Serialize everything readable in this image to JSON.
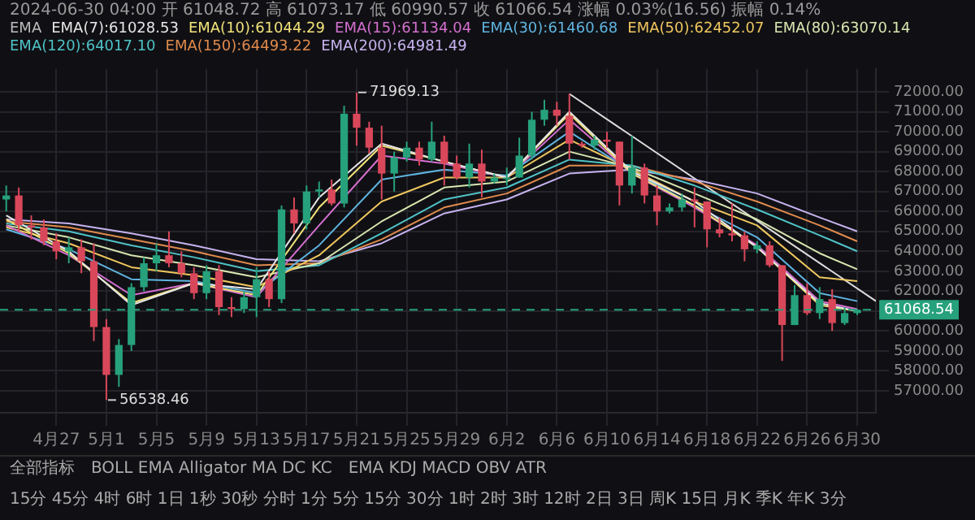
{
  "chart_data": {
    "type": "candlestick",
    "title": "2024-06-30 04:00 开 61048.72 高 61073.17 低 60990.57 收 61066.54 涨幅 0.03%(16.56) 振幅 0.14%",
    "legend_title": "EMA",
    "legend": "top",
    "grid": true,
    "marker": "none",
    "x": [
      "2024-04-23",
      "2024-04-24",
      "2024-04-25",
      "2024-04-26",
      "2024-04-27",
      "2024-04-28",
      "2024-04-29",
      "2024-04-30",
      "2024-05-01",
      "2024-05-02",
      "2024-05-03",
      "2024-05-04",
      "2024-05-05",
      "2024-05-06",
      "2024-05-07",
      "2024-05-08",
      "2024-05-09",
      "2024-05-10",
      "2024-05-11",
      "2024-05-12",
      "2024-05-13",
      "2024-05-14",
      "2024-05-15",
      "2024-05-16",
      "2024-05-17",
      "2024-05-18",
      "2024-05-19",
      "2024-05-20",
      "2024-05-21",
      "2024-05-22",
      "2024-05-23",
      "2024-05-24",
      "2024-05-25",
      "2024-05-26",
      "2024-05-27",
      "2024-05-28",
      "2024-05-29",
      "2024-05-30",
      "2024-05-31",
      "2024-06-01",
      "2024-06-02",
      "2024-06-03",
      "2024-06-04",
      "2024-06-05",
      "2024-06-06",
      "2024-06-07",
      "2024-06-08",
      "2024-06-09",
      "2024-06-10",
      "2024-06-11",
      "2024-06-12",
      "2024-06-13",
      "2024-06-14",
      "2024-06-15",
      "2024-06-16",
      "2024-06-17",
      "2024-06-18",
      "2024-06-19",
      "2024-06-20",
      "2024-06-21",
      "2024-06-22",
      "2024-06-23",
      "2024-06-24",
      "2024-06-25",
      "2024-06-26",
      "2024-06-27",
      "2024-06-28",
      "2024-06-29",
      "2024-06-30"
    ],
    "ohlc": [
      [
        66600,
        67300,
        66000,
        66800
      ],
      [
        66800,
        67200,
        65000,
        65300
      ],
      [
        65300,
        65800,
        64600,
        65200
      ],
      [
        65200,
        65600,
        64300,
        64500
      ],
      [
        64500,
        64900,
        63600,
        64000
      ],
      [
        64000,
        64700,
        63400,
        64200
      ],
      [
        64200,
        64600,
        62900,
        63500
      ],
      [
        63500,
        64400,
        59500,
        60200
      ],
      [
        60200,
        60600,
        56538.46,
        57800
      ],
      [
        57800,
        59600,
        57200,
        59300
      ],
      [
        59300,
        62400,
        59000,
        62200
      ],
      [
        62200,
        63700,
        62000,
        63400
      ],
      [
        63400,
        64400,
        63000,
        63800
      ],
      [
        63800,
        65000,
        63200,
        63400
      ],
      [
        63400,
        64000,
        62700,
        62900
      ],
      [
        62900,
        63200,
        61600,
        61900
      ],
      [
        61900,
        63300,
        61600,
        63000
      ],
      [
        63000,
        63300,
        60800,
        61200
      ],
      [
        61200,
        61700,
        60700,
        61100
      ],
      [
        61100,
        62000,
        60900,
        61700
      ],
      [
        61700,
        63200,
        60700,
        62600
      ],
      [
        62600,
        63000,
        61200,
        61600
      ],
      [
        61600,
        66300,
        61400,
        66100
      ],
      [
        66100,
        66700,
        64900,
        65400
      ],
      [
        65400,
        67300,
        65100,
        67000
      ],
      [
        67000,
        67500,
        66700,
        67100
      ],
      [
        67100,
        67600,
        66300,
        66400
      ],
      [
        66400,
        71300,
        66200,
        70900
      ],
      [
        70900,
        71969.13,
        69300,
        70200
      ],
      [
        70200,
        70500,
        68900,
        69200
      ],
      [
        69200,
        70300,
        66600,
        67900
      ],
      [
        67900,
        69000,
        67000,
        68700
      ],
      [
        68700,
        69500,
        68500,
        69200
      ],
      [
        69200,
        69500,
        68300,
        68600
      ],
      [
        68600,
        70500,
        68500,
        69500
      ],
      [
        69500,
        69800,
        67300,
        68400
      ],
      [
        68400,
        68800,
        67600,
        67700
      ],
      [
        67700,
        69400,
        67200,
        68400
      ],
      [
        68400,
        69100,
        66700,
        67500
      ],
      [
        67500,
        67900,
        67400,
        67700
      ],
      [
        67700,
        68200,
        67300,
        67700
      ],
      [
        67700,
        69700,
        67700,
        68800
      ],
      [
        68800,
        71000,
        68600,
        70600
      ],
      [
        70600,
        71600,
        70300,
        71100
      ],
      [
        71100,
        71500,
        70300,
        70800
      ],
      [
        70800,
        71900,
        68600,
        69400
      ],
      [
        69400,
        69500,
        69200,
        69300
      ],
      [
        69300,
        69800,
        69100,
        69600
      ],
      [
        69600,
        70000,
        69200,
        69500
      ],
      [
        69500,
        69500,
        66300,
        67300
      ],
      [
        67300,
        69800,
        66900,
        68200
      ],
      [
        68200,
        68400,
        66400,
        66800
      ],
      [
        66800,
        67300,
        65300,
        66000
      ],
      [
        66000,
        66400,
        65900,
        66200
      ],
      [
        66200,
        66900,
        66000,
        66600
      ],
      [
        66600,
        67200,
        65200,
        66500
      ],
      [
        66500,
        66500,
        64200,
        65100
      ],
      [
        65100,
        65700,
        64700,
        64900
      ],
      [
        64900,
        66400,
        64500,
        64800
      ],
      [
        64800,
        65000,
        63500,
        64100
      ],
      [
        64100,
        64500,
        63900,
        64300
      ],
      [
        64300,
        64500,
        63200,
        63300
      ],
      [
        63300,
        63300,
        58500,
        60300
      ],
      [
        60300,
        62300,
        60300,
        61800
      ],
      [
        61800,
        62400,
        60800,
        60900
      ],
      [
        60900,
        62200,
        60600,
        61600
      ],
      [
        61600,
        62100,
        60000,
        60400
      ],
      [
        60400,
        61200,
        60300,
        60900
      ],
      [
        60900,
        61100,
        60800,
        61068.54
      ]
    ],
    "series": [
      {
        "type": "line",
        "name": "EMA(7):61028.53",
        "color": "#e6e6e6",
        "x": [
          "2024-04-23",
          "2024-04-28",
          "2024-05-03",
          "2024-05-08",
          "2024-05-13",
          "2024-05-18",
          "2024-05-23",
          "2024-05-28",
          "2024-06-02",
          "2024-06-07",
          "2024-06-12",
          "2024-06-17",
          "2024-06-22",
          "2024-06-27",
          "2024-06-30"
        ],
        "values": [
          65800,
          64000,
          61300,
          62400,
          62100,
          66700,
          69400,
          68500,
          67700,
          71000,
          68000,
          66500,
          64200,
          61400,
          61000
        ]
      },
      {
        "type": "line",
        "name": "EMA(10):61044.29",
        "color": "#f2e27a",
        "x": [
          "2024-04-23",
          "2024-04-28",
          "2024-05-03",
          "2024-05-08",
          "2024-05-13",
          "2024-05-18",
          "2024-05-23",
          "2024-05-28",
          "2024-06-02",
          "2024-06-07",
          "2024-06-12",
          "2024-06-17",
          "2024-06-22",
          "2024-06-27",
          "2024-06-30"
        ],
        "values": [
          65600,
          63900,
          61400,
          62400,
          61800,
          66200,
          69300,
          68500,
          67700,
          70900,
          67900,
          66300,
          64200,
          61300,
          61000
        ]
      },
      {
        "type": "line",
        "name": "EMA(15):61134.04",
        "color": "#d46fcf",
        "x": [
          "2024-04-23",
          "2024-04-28",
          "2024-05-03",
          "2024-05-08",
          "2024-05-13",
          "2024-05-18",
          "2024-05-23",
          "2024-05-28",
          "2024-06-02",
          "2024-06-07",
          "2024-06-12",
          "2024-06-17",
          "2024-06-22",
          "2024-06-27",
          "2024-06-30"
        ],
        "values": [
          65300,
          63800,
          61800,
          62400,
          61700,
          65300,
          68800,
          68400,
          67700,
          70600,
          67900,
          66200,
          64300,
          61500,
          61100
        ]
      },
      {
        "type": "line",
        "name": "EMA(30):61460.68",
        "color": "#5fb4e0",
        "x": [
          "2024-04-23",
          "2024-04-28",
          "2024-05-03",
          "2024-05-08",
          "2024-05-13",
          "2024-05-18",
          "2024-05-23",
          "2024-05-28",
          "2024-06-02",
          "2024-06-07",
          "2024-06-12",
          "2024-06-17",
          "2024-06-22",
          "2024-06-27",
          "2024-06-30"
        ],
        "values": [
          65100,
          64100,
          62600,
          62500,
          61900,
          64300,
          67600,
          68100,
          67800,
          70000,
          68000,
          66300,
          64700,
          61900,
          61500
        ]
      },
      {
        "type": "line",
        "name": "EMA(50):62452.07",
        "color": "#f0c75e",
        "x": [
          "2024-04-23",
          "2024-04-28",
          "2024-05-03",
          "2024-05-08",
          "2024-05-13",
          "2024-05-18",
          "2024-05-23",
          "2024-05-28",
          "2024-06-02",
          "2024-06-07",
          "2024-06-12",
          "2024-06-17",
          "2024-06-22",
          "2024-06-27",
          "2024-06-30"
        ],
        "values": [
          65200,
          64400,
          63200,
          62800,
          62200,
          63800,
          66500,
          67700,
          67700,
          69600,
          68100,
          66500,
          65300,
          62700,
          62500
        ]
      },
      {
        "type": "line",
        "name": "EMA(80):63070.14",
        "color": "#d8e6b0",
        "x": [
          "2024-04-23",
          "2024-04-28",
          "2024-05-03",
          "2024-05-08",
          "2024-05-13",
          "2024-05-18",
          "2024-05-23",
          "2024-05-28",
          "2024-06-02",
          "2024-06-07",
          "2024-06-12",
          "2024-06-17",
          "2024-06-22",
          "2024-06-27",
          "2024-06-30"
        ],
        "values": [
          65300,
          64700,
          63800,
          63300,
          62700,
          63400,
          65500,
          67200,
          67500,
          69000,
          68200,
          66900,
          65600,
          63900,
          63100
        ]
      },
      {
        "type": "line",
        "name": "EMA(120):64017.10",
        "color": "#4fc3c7",
        "x": [
          "2024-04-23",
          "2024-04-28",
          "2024-05-03",
          "2024-05-08",
          "2024-05-13",
          "2024-05-18",
          "2024-05-23",
          "2024-05-28",
          "2024-06-02",
          "2024-06-07",
          "2024-06-12",
          "2024-06-17",
          "2024-06-22",
          "2024-06-27",
          "2024-06-30"
        ],
        "values": [
          65400,
          65000,
          64300,
          63700,
          63000,
          63300,
          64900,
          66600,
          67200,
          68600,
          68300,
          67300,
          66100,
          64800,
          64000
        ]
      },
      {
        "type": "line",
        "name": "EMA(150):64493.22",
        "color": "#e08a4c",
        "x": [
          "2024-04-23",
          "2024-04-28",
          "2024-05-03",
          "2024-05-08",
          "2024-05-13",
          "2024-05-18",
          "2024-05-23",
          "2024-05-28",
          "2024-06-02",
          "2024-06-07",
          "2024-06-12",
          "2024-06-17",
          "2024-06-22",
          "2024-06-27",
          "2024-06-30"
        ],
        "values": [
          65500,
          65200,
          64600,
          64000,
          63300,
          63400,
          64600,
          66200,
          66900,
          68300,
          68300,
          67500,
          66500,
          65300,
          64500
        ]
      },
      {
        "type": "line",
        "name": "EMA(200):64981.49",
        "color": "#c7b3f0",
        "x": [
          "2024-04-23",
          "2024-04-28",
          "2024-05-03",
          "2024-05-08",
          "2024-05-13",
          "2024-05-18",
          "2024-05-23",
          "2024-05-28",
          "2024-06-02",
          "2024-06-07",
          "2024-06-12",
          "2024-06-17",
          "2024-06-22",
          "2024-06-27",
          "2024-06-30"
        ],
        "values": [
          65600,
          65400,
          64900,
          64300,
          63600,
          63500,
          64400,
          65900,
          66600,
          67900,
          68100,
          67600,
          66900,
          65700,
          65000
        ]
      },
      {
        "type": "line",
        "color": "#dddddd",
        "x": [
          "2024-06-07",
          "2024-07-01T12:00"
        ],
        "values": [
          71900,
          61500
        ]
      }
    ],
    "xlim": [
      "2024-04-22T12:00",
      "2024-07-01T12:00"
    ],
    "xticks": [
      {
        "value": "2024-04-27",
        "label": "4月27"
      },
      {
        "value": "2024-05-01",
        "label": "5月1"
      },
      {
        "value": "2024-05-05",
        "label": "5月5"
      },
      {
        "value": "2024-05-09",
        "label": "5月9"
      },
      {
        "value": "2024-05-13",
        "label": "5月13"
      },
      {
        "value": "2024-05-17",
        "label": "5月17"
      },
      {
        "value": "2024-05-21",
        "label": "5月21"
      },
      {
        "value": "2024-05-25",
        "label": "5月25"
      },
      {
        "value": "2024-05-29",
        "label": "5月29"
      },
      {
        "value": "2024-06-02",
        "label": "6月2"
      },
      {
        "value": "2024-06-06",
        "label": "6月6"
      },
      {
        "value": "2024-06-10",
        "label": "6月10"
      },
      {
        "value": "2024-06-14",
        "label": "6月14"
      },
      {
        "value": "2024-06-18",
        "label": "6月18"
      },
      {
        "value": "2024-06-22",
        "label": "6月22"
      },
      {
        "value": "2024-06-26",
        "label": "6月26"
      },
      {
        "value": "2024-06-30",
        "label": "6月30"
      }
    ],
    "ylim": [
      55900,
      73150
    ],
    "yticks": [
      {
        "value": 57000,
        "label": "57000.00"
      },
      {
        "value": 58000,
        "label": "58000.00"
      },
      {
        "value": 59000,
        "label": "59000.00"
      },
      {
        "value": 60000,
        "label": "60000.00"
      },
      {
        "value": 61000,
        "label": null
      },
      {
        "value": 62000,
        "label": "62000.00"
      },
      {
        "value": 63000,
        "label": "63000.00"
      },
      {
        "value": 64000,
        "label": "64000.00"
      },
      {
        "value": 65000,
        "label": "65000.00"
      },
      {
        "value": 66000,
        "label": "66000.00"
      },
      {
        "value": 67000,
        "label": "67000.00"
      },
      {
        "value": 68000,
        "label": "68000.00"
      },
      {
        "value": 69000,
        "label": "69000.00"
      },
      {
        "value": 70000,
        "label": "70000.00"
      },
      {
        "value": 71000,
        "label": "71000.00"
      },
      {
        "value": 72000,
        "label": "72000.00"
      }
    ],
    "ref_lines": [
      {
        "axis": "y",
        "value": 61068.54,
        "label": "61068.54",
        "color": "#26a17b",
        "line_style": "dashed"
      }
    ],
    "annotations": [
      {
        "text": "71969.13",
        "x": "2024-05-21",
        "y": 71969.13
      },
      {
        "text": "56538.46",
        "x": "2024-05-01",
        "y": 56538.46
      },
      "全部指标",
      "BOLL EMA Alligator MA DC KC",
      "EMA KDJ MACD OBV ATR",
      "15分 45分 4时 6时 1日 1秒 30秒 分时 1分 5分 15分 30分 1时 2时 3时 12时 2日 3日 周K 15日 月K 季K 年K 3分"
    ]
  }
}
